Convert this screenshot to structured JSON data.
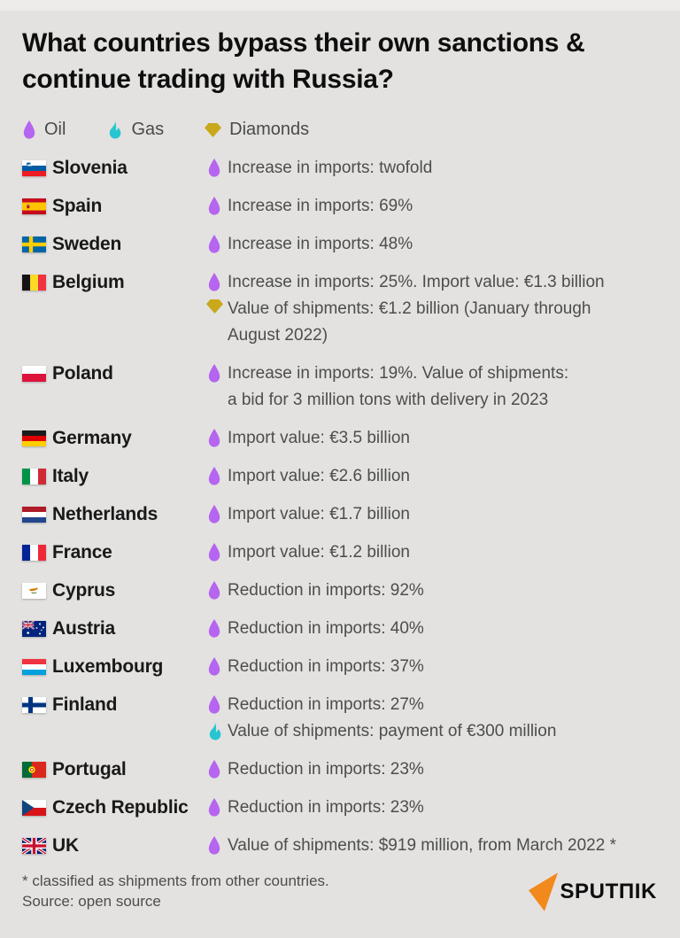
{
  "title": "What countries bypass their own sanctions & continue trading with Russia?",
  "legend": [
    {
      "id": "oil",
      "label": "Oil"
    },
    {
      "id": "gas",
      "label": "Gas"
    },
    {
      "id": "diamonds",
      "label": "Diamonds"
    }
  ],
  "colors": {
    "oil": "#b565ef",
    "gas": "#26c6d1",
    "diamonds": "#c9a81a",
    "brand_orange": "#f2891d",
    "background": "#e3e2e0",
    "text_dark": "#191919",
    "text_gray": "#4d4d4d"
  },
  "rows": [
    {
      "country": "Slovenia",
      "flag": "si",
      "entries": [
        {
          "icon": "oil",
          "text": "Increase in imports: twofold"
        }
      ]
    },
    {
      "country": "Spain",
      "flag": "es",
      "entries": [
        {
          "icon": "oil",
          "text": "Increase in imports: 69%"
        }
      ]
    },
    {
      "country": "Sweden",
      "flag": "se",
      "entries": [
        {
          "icon": "oil",
          "text": "Increase in imports: 48%"
        }
      ]
    },
    {
      "country": "Belgium",
      "flag": "be",
      "entries": [
        {
          "icon": "oil",
          "text": "Increase in imports: 25%. Import value: €1.3 billion"
        },
        {
          "icon": "diamonds",
          "text": "Value of shipments: €1.2 billion (January through\nAugust 2022)"
        }
      ]
    },
    {
      "country": "Poland",
      "flag": "pl",
      "entries": [
        {
          "icon": "oil",
          "text": "Increase in imports: 19%. Value of shipments:\na bid for 3 million tons with delivery in 2023"
        }
      ]
    },
    {
      "country": "Germany",
      "flag": "de",
      "entries": [
        {
          "icon": "oil",
          "text": "Import value: €3.5 billion"
        }
      ]
    },
    {
      "country": "Italy",
      "flag": "it",
      "entries": [
        {
          "icon": "oil",
          "text": "Import value: €2.6 billion"
        }
      ]
    },
    {
      "country": "Netherlands",
      "flag": "nl",
      "entries": [
        {
          "icon": "oil",
          "text": "Import value: €1.7 billion"
        }
      ]
    },
    {
      "country": "France",
      "flag": "fr",
      "entries": [
        {
          "icon": "oil",
          "text": "Import value: €1.2 billion"
        }
      ]
    },
    {
      "country": "Cyprus",
      "flag": "cy",
      "entries": [
        {
          "icon": "oil",
          "text": "Reduction in imports: 92%"
        }
      ]
    },
    {
      "country": "Austria",
      "flag": "au",
      "entries": [
        {
          "icon": "oil",
          "text": "Reduction in imports: 40%"
        }
      ]
    },
    {
      "country": "Luxembourg",
      "flag": "lu",
      "entries": [
        {
          "icon": "oil",
          "text": "Reduction in imports: 37%"
        }
      ]
    },
    {
      "country": "Finland",
      "flag": "fi",
      "entries": [
        {
          "icon": "oil",
          "text": "Reduction in imports: 27%"
        },
        {
          "icon": "gas",
          "text": "Value of shipments: payment of €300 million"
        }
      ]
    },
    {
      "country": "Portugal",
      "flag": "pt",
      "entries": [
        {
          "icon": "oil",
          "text": "Reduction in imports: 23%"
        }
      ]
    },
    {
      "country": "Czech Republic",
      "flag": "cz",
      "entries": [
        {
          "icon": "oil",
          "text": "Reduction in imports: 23%"
        }
      ]
    },
    {
      "country": "UK",
      "flag": "gb",
      "entries": [
        {
          "icon": "oil",
          "text": "Value of shipments: $919 million, from March 2022 *"
        }
      ]
    }
  ],
  "footer": {
    "note": "* classified as shipments from other countries.",
    "source": "Source: open source",
    "brand": "SPUTΠIK"
  }
}
